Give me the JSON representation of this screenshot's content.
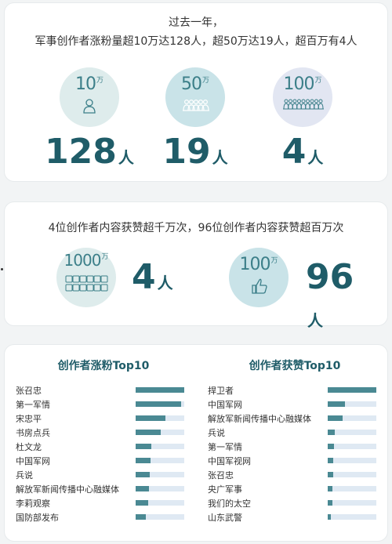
{
  "card1": {
    "line1": "过去一年，",
    "line2": "军事创作者涨粉量超10万达128人，超50万达19人，超百万有4人",
    "stats": [
      {
        "threshold": "10",
        "unit": "万",
        "count": "128",
        "count_unit": "人",
        "icon": "single-person-icon"
      },
      {
        "threshold": "50",
        "unit": "万",
        "count": "19",
        "count_unit": "人",
        "icon": "group-people-icon"
      },
      {
        "threshold": "100",
        "unit": "万",
        "count": "4",
        "count_unit": "人",
        "icon": "crowd-people-icon"
      }
    ]
  },
  "card2": {
    "title": "4位创作者内容获赞超千万次，96位创作者内容获赞超百万次",
    "stats": [
      {
        "threshold": "1000",
        "unit": "万",
        "count": "4",
        "count_unit": "人",
        "icon": "many-thumbs-up-icon"
      },
      {
        "threshold": "100",
        "unit": "万",
        "count": "96",
        "count_unit": "人",
        "icon": "thumbs-up-icon"
      }
    ]
  },
  "card3": {
    "left_title": "创作者涨粉Top10",
    "right_title": "创作者获赞Top10",
    "left": [
      {
        "name": "张召忠",
        "level": 1.0
      },
      {
        "name": "第一军情",
        "level": 0.93
      },
      {
        "name": "宋忠平",
        "level": 0.62
      },
      {
        "name": "书房点兵",
        "level": 0.52
      },
      {
        "name": "杜文龙",
        "level": 0.33
      },
      {
        "name": "中国军网",
        "level": 0.31
      },
      {
        "name": "兵说",
        "level": 0.29
      },
      {
        "name": "解放军新闻传播中心融媒体",
        "level": 0.28
      },
      {
        "name": "李莉观察",
        "level": 0.25
      },
      {
        "name": "国防部发布",
        "level": 0.21
      }
    ],
    "right": [
      {
        "name": "捍卫者",
        "level": 1.0
      },
      {
        "name": "中国军网",
        "level": 0.36
      },
      {
        "name": "解放军新闻传播中心融媒体",
        "level": 0.31
      },
      {
        "name": "兵说",
        "level": 0.15
      },
      {
        "name": "第一军情",
        "level": 0.13
      },
      {
        "name": "中国军视网",
        "level": 0.12
      },
      {
        "name": "张召忠",
        "level": 0.11
      },
      {
        "name": "央广军事",
        "level": 0.1
      },
      {
        "name": "我们的太空",
        "level": 0.09
      },
      {
        "name": "山东武警",
        "level": 0.07
      }
    ]
  },
  "colors": {
    "accent": "#1f5c68",
    "bar": "#4a8993",
    "track": "#dfe9f3"
  }
}
